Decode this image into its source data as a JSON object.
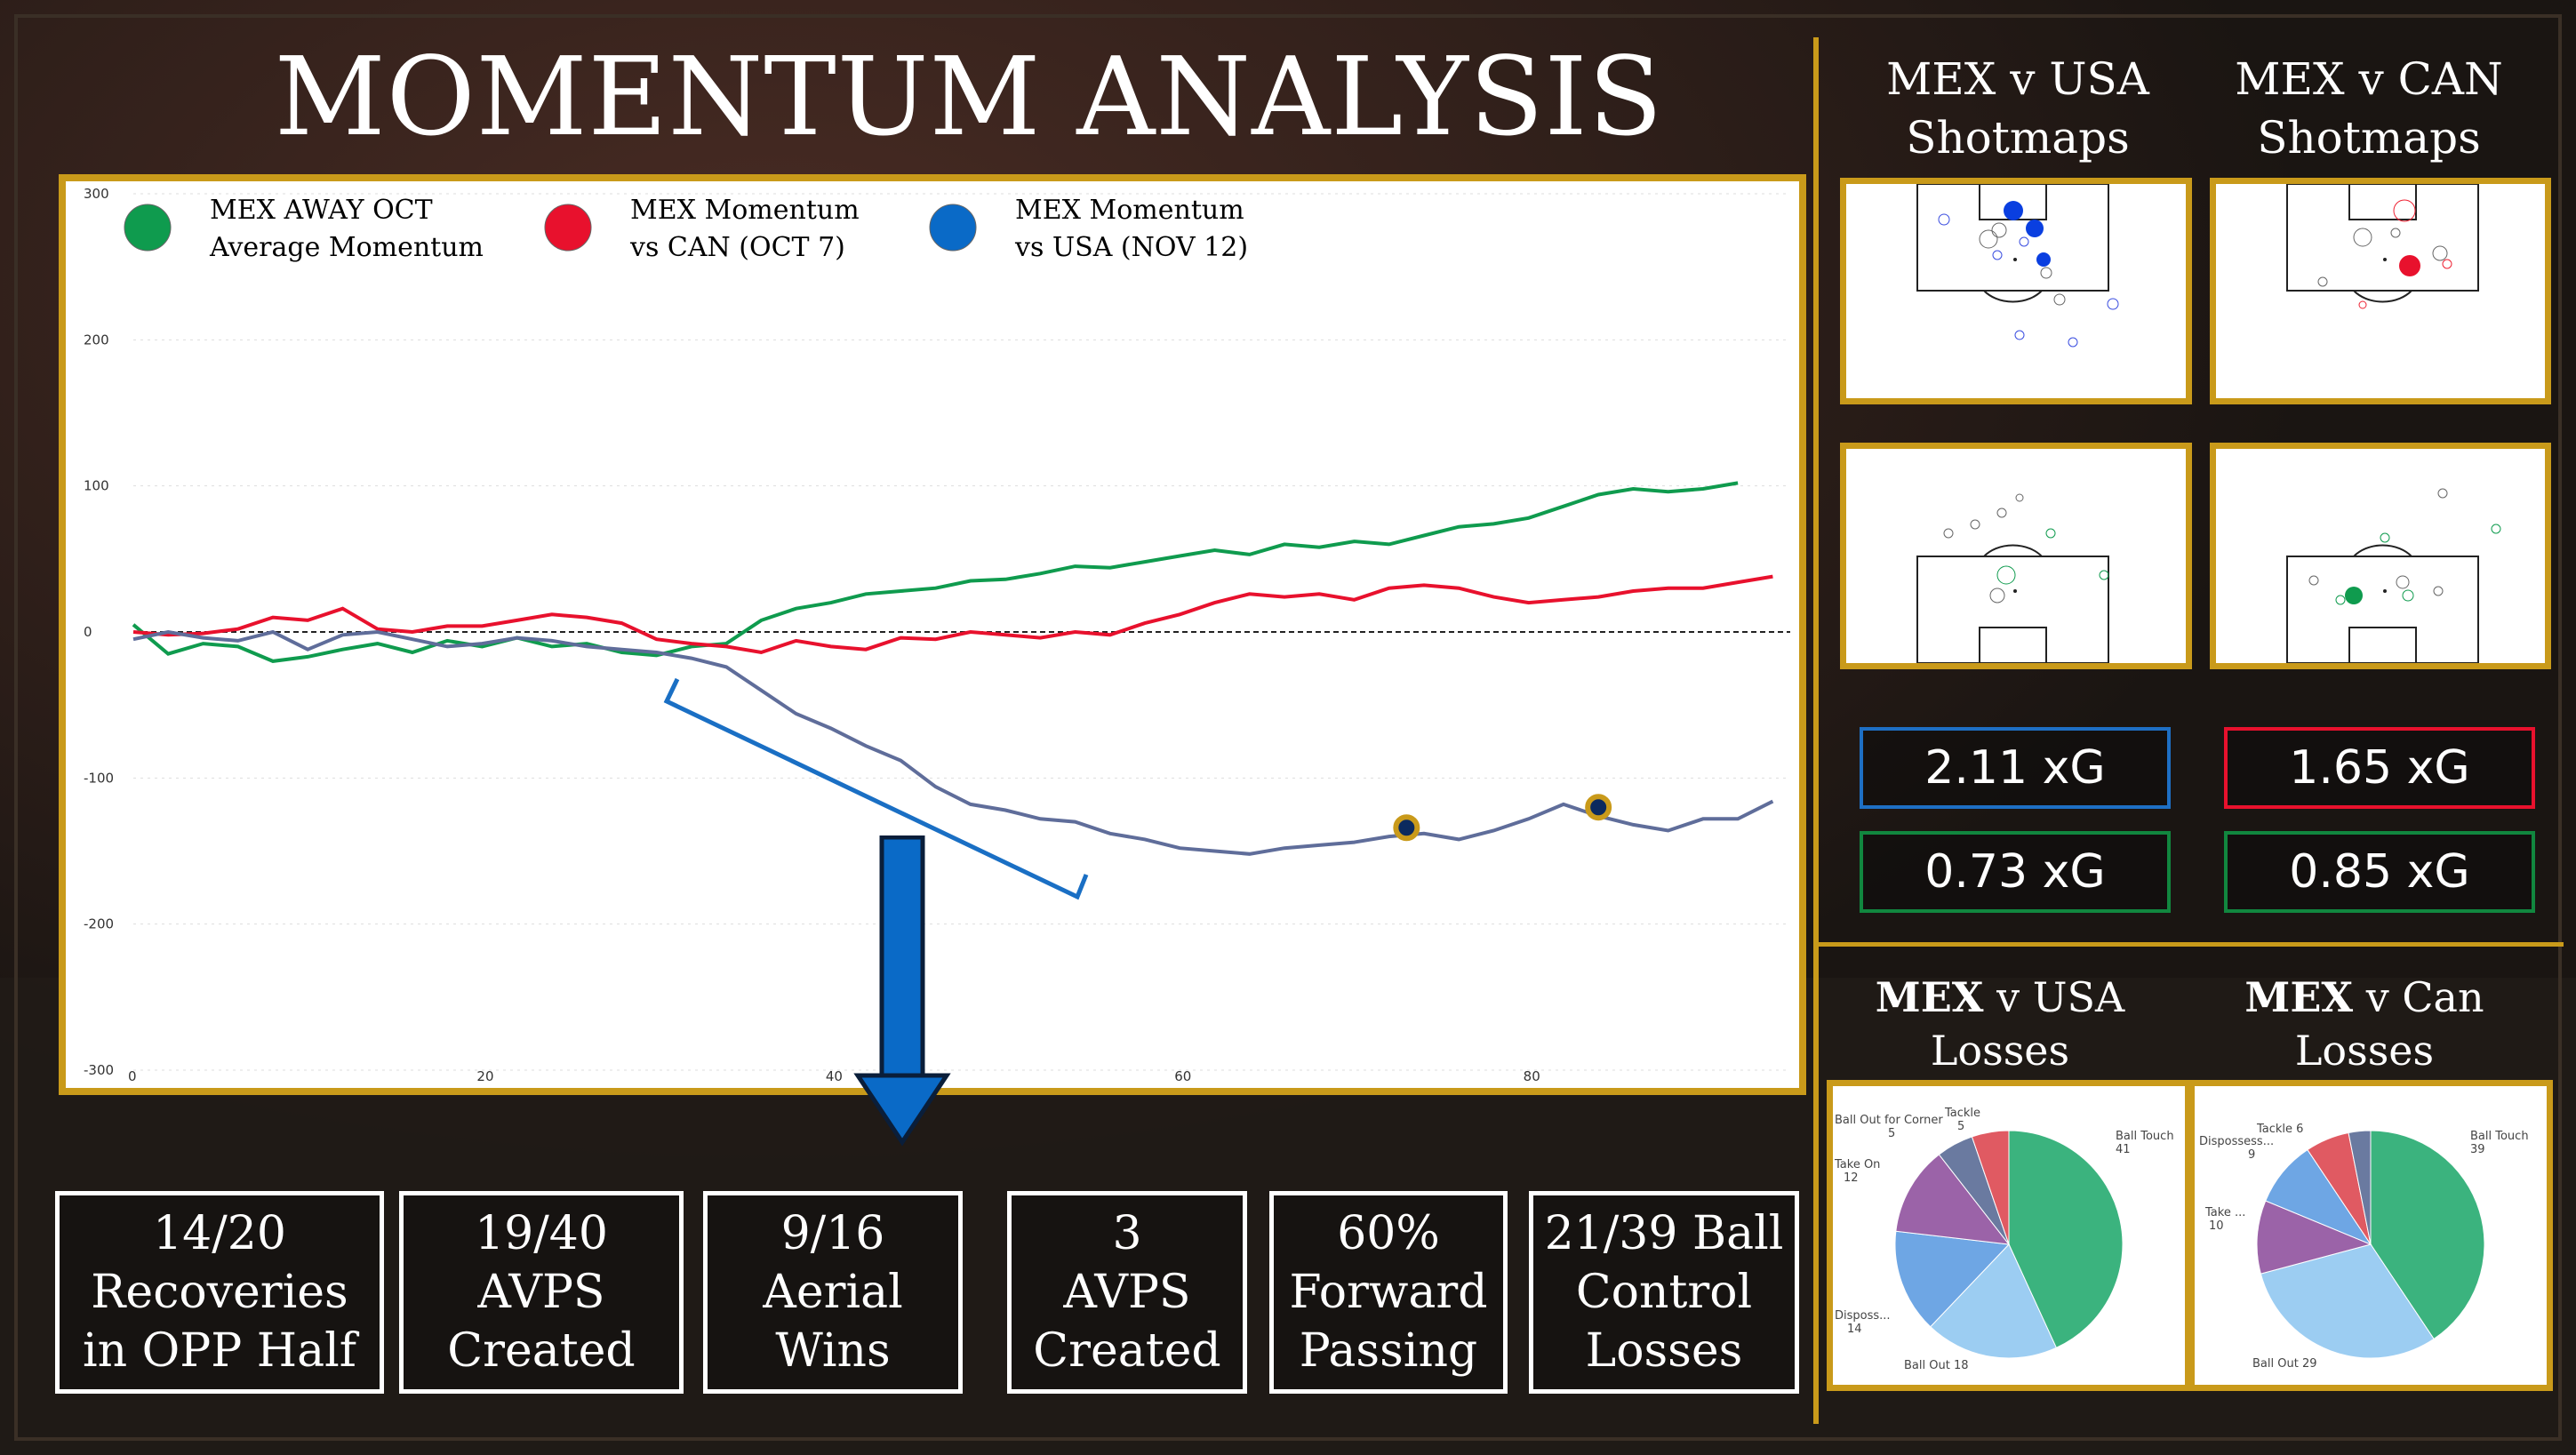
{
  "title": "MOMENTUM ANALYSIS",
  "colors": {
    "gold": "#c99a1a",
    "green": "#0f9b4e",
    "red": "#e8112d",
    "blue": "#0a6ac7",
    "usa_line": "#5f6d9a",
    "stat_blue": "#1e6fc4",
    "stat_green": "#11873f"
  },
  "legend": [
    {
      "line1": "MEX AWAY OCT",
      "line2": "Average Momentum",
      "color": "#0f9b4e"
    },
    {
      "line1": "MEX Momentum",
      "line2": "vs CAN (OCT 7)",
      "color": "#e8112d"
    },
    {
      "line1": "MEX Momentum",
      "line2": "vs USA (NOV 12)",
      "color": "#0a6ac7"
    }
  ],
  "chart_data": {
    "type": "line",
    "title": "",
    "xlabel": "",
    "ylabel": "",
    "xlim": [
      0,
      95
    ],
    "ylim": [
      -300,
      300
    ],
    "x_ticks": [
      "0",
      "20",
      "40",
      "60",
      "80"
    ],
    "y_ticks": [
      "300",
      "200",
      "100",
      "0",
      "-100",
      "-200",
      "-300"
    ],
    "series": [
      {
        "name": "MEX AWAY OCT Average Momentum",
        "color": "#0f9b4e",
        "x": [
          0,
          2,
          4,
          6,
          8,
          10,
          12,
          14,
          16,
          18,
          20,
          22,
          24,
          26,
          28,
          30,
          32,
          34,
          36,
          38,
          40,
          42,
          44,
          46,
          48,
          50,
          52,
          54,
          56,
          58,
          60,
          62,
          64,
          66,
          68,
          70,
          72,
          74,
          76,
          78,
          80,
          82,
          84,
          86,
          88,
          90,
          92
        ],
        "y": [
          5,
          -15,
          -8,
          -10,
          -20,
          -17,
          -12,
          -8,
          -14,
          -6,
          -10,
          -4,
          -10,
          -8,
          -14,
          -16,
          -10,
          -8,
          8,
          16,
          20,
          26,
          28,
          30,
          35,
          36,
          40,
          45,
          44,
          48,
          52,
          56,
          53,
          60,
          58,
          62,
          60,
          66,
          72,
          74,
          78,
          86,
          94,
          98,
          96,
          98,
          102
        ]
      },
      {
        "name": "MEX Momentum vs CAN (OCT 7)",
        "color": "#e8112d",
        "x": [
          0,
          2,
          4,
          6,
          8,
          10,
          12,
          14,
          16,
          18,
          20,
          22,
          24,
          26,
          28,
          30,
          32,
          34,
          36,
          38,
          40,
          42,
          44,
          46,
          48,
          50,
          52,
          54,
          56,
          58,
          60,
          62,
          64,
          66,
          68,
          70,
          72,
          74,
          76,
          78,
          80,
          82,
          84,
          86,
          88,
          90,
          92,
          94
        ],
        "y": [
          0,
          -2,
          -1,
          2,
          10,
          8,
          16,
          2,
          0,
          4,
          4,
          8,
          12,
          10,
          6,
          -5,
          -8,
          -10,
          -14,
          -6,
          -10,
          -12,
          -4,
          -5,
          0,
          -2,
          -4,
          0,
          -2,
          6,
          12,
          20,
          26,
          24,
          26,
          22,
          30,
          32,
          30,
          24,
          20,
          22,
          24,
          28,
          30,
          30,
          34,
          38
        ]
      },
      {
        "name": "MEX Momentum vs USA (NOV 12)",
        "color": "#5f6d9a",
        "x": [
          0,
          2,
          4,
          6,
          8,
          10,
          12,
          14,
          16,
          18,
          20,
          22,
          24,
          26,
          28,
          30,
          32,
          34,
          36,
          38,
          40,
          42,
          44,
          46,
          48,
          50,
          52,
          54,
          56,
          58,
          60,
          62,
          64,
          66,
          68,
          70,
          72,
          74,
          76,
          78,
          80,
          82,
          84,
          86,
          88,
          90,
          92,
          94
        ],
        "y": [
          -5,
          0,
          -4,
          -6,
          0,
          -12,
          -2,
          0,
          -5,
          -10,
          -8,
          -4,
          -6,
          -10,
          -12,
          -14,
          -18,
          -24,
          -40,
          -56,
          -66,
          -78,
          -88,
          -106,
          -118,
          -122,
          -128,
          -130,
          -138,
          -142,
          -148,
          -150,
          -152,
          -148,
          -146,
          -144,
          -140,
          -138,
          -142,
          -136,
          -128,
          -118,
          -126,
          -132,
          -136,
          -128,
          -128,
          -116
        ]
      }
    ],
    "highlight_points": [
      {
        "x": 73,
        "y": -134
      },
      {
        "x": 84,
        "y": -120
      }
    ]
  },
  "stats": [
    {
      "text": "14/20\nRecoveries\nin OPP Half",
      "color": "#1e6fc4"
    },
    {
      "text": "19/40\nAVPS\nCreated",
      "color": "#1e6fc4"
    },
    {
      "text": "9/16\nAerial\nWins",
      "color": "#1e6fc4"
    },
    {
      "text": "3\nAVPS\nCreated",
      "color": "#11873f"
    },
    {
      "text": "60%\nForward\nPassing",
      "color": "#11873f"
    },
    {
      "text": "21/39 Ball\nControl\nLosses",
      "color": "#11873f"
    }
  ],
  "shotmaps": {
    "usa_title_1": "MEX v USA",
    "usa_title_2": "Shotmaps",
    "can_title_1": "MEX v CAN",
    "can_title_2": "Shotmaps"
  },
  "xg": {
    "usa_for": "2.11 xG",
    "can_for": "1.65 xG",
    "usa_against": "0.73 xG",
    "can_against": "0.85 xG"
  },
  "losses": {
    "usa_bold": "MEX",
    "usa_rest": " v USA",
    "usa_line2": "Losses",
    "can_bold": "MEX",
    "can_rest": " v Can",
    "can_line2": "Losses",
    "usa_pie": [
      {
        "label": "Ball Touch",
        "value": "41",
        "color": "#3bb37e"
      },
      {
        "label": "Ball Out 18",
        "value": "",
        "color": "#9ccdf2"
      },
      {
        "label": "Disposs...",
        "value": "14",
        "color": "#6ea6e4"
      },
      {
        "label": "Take On",
        "value": "12",
        "color": "#9b63a8"
      },
      {
        "label": "Ball Out for Corner",
        "value": "5",
        "color": "#6a7aa0"
      },
      {
        "label": "Tackle",
        "value": "5",
        "color": "#e05a62"
      }
    ],
    "can_pie": [
      {
        "label": "Ball Touch",
        "value": "39",
        "color": "#3bb37e"
      },
      {
        "label": "Ball Out 29",
        "value": "",
        "color": "#9ccdf2"
      },
      {
        "label": "Take ...",
        "value": "10",
        "color": "#9b63a8"
      },
      {
        "label": "Dispossess...",
        "value": "9",
        "color": "#6ea6e4"
      },
      {
        "label": "Tackle 6",
        "value": "",
        "color": "#e05a62"
      },
      {
        "label": "",
        "value": "",
        "color": "#6a7aa0"
      }
    ]
  }
}
